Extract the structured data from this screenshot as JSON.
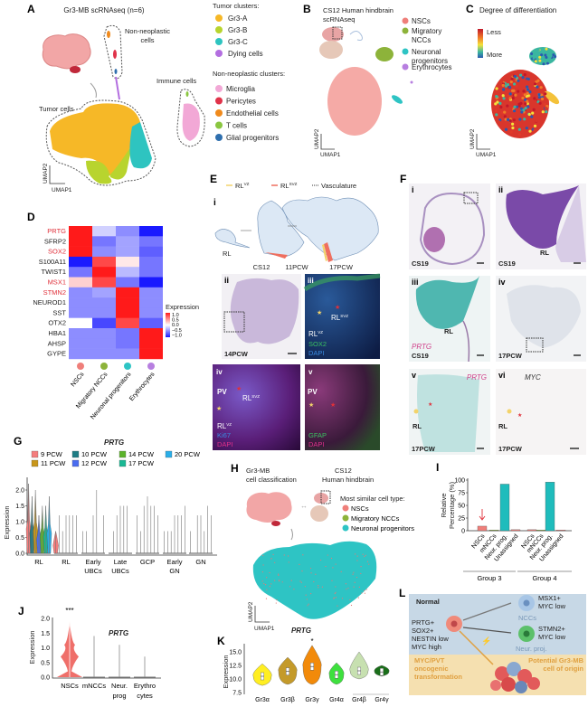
{
  "panel_labels": {
    "A": "A",
    "B": "B",
    "C": "C",
    "D": "D",
    "E": "E",
    "F": "F",
    "G": "G",
    "H": "H",
    "I": "I",
    "J": "J",
    "K": "K",
    "L": "L"
  },
  "A": {
    "title": "Gr3-MB scRNAseq (n=6)",
    "non_neoplastic_line1": "Non-neoplastic",
    "non_neoplastic_line2": "cells",
    "immune_label": "Immune cells",
    "tumor_label": "Tumor cells",
    "umap1": "UMAP1",
    "umap2": "UMAP2",
    "tumor_header": "Tumor clusters:",
    "tumor_clusters": [
      {
        "label": "Gr3-A",
        "color": "#f6b827"
      },
      {
        "label": "Gr3-B",
        "color": "#b8d42e"
      },
      {
        "label": "Gr3-C",
        "color": "#2ec4c0"
      },
      {
        "label": "Dying cells",
        "color": "#b36ee0"
      }
    ],
    "nonneo_header": "Non-neoplastic clusters:",
    "nonneo_clusters": [
      {
        "label": "Microglia",
        "color": "#f2a8d6"
      },
      {
        "label": "Pericytes",
        "color": "#e0334a"
      },
      {
        "label": "Endothelial cells",
        "color": "#f08a1c"
      },
      {
        "label": "T cells",
        "color": "#8ac640"
      },
      {
        "label": "Glial progenitors",
        "color": "#2f6fae"
      }
    ]
  },
  "B": {
    "title_line1": "CS12 Human hindbrain",
    "title_line2": "scRNAseq",
    "legend": [
      {
        "label": "NSCs",
        "color": "#ef7f7a"
      },
      {
        "label": "Migratory",
        "color": "#8db33a"
      },
      {
        "label": "NCCs",
        "color": ""
      },
      {
        "label": "Neuronal",
        "color": "#2ec4c4"
      },
      {
        "label": "progenitors",
        "color": ""
      },
      {
        "label": "Erythrocytes",
        "color": "#b77fe0"
      }
    ],
    "umap1": "UMAP1",
    "umap2": "UMAP2"
  },
  "C": {
    "title": "Degree of differentiation",
    "less": "Less",
    "more": "More",
    "umap1": "UMAP1",
    "umap2": "UMAP2"
  },
  "E": {
    "legend": {
      "rlvz": "RL",
      "rlvz_sup": "VZ",
      "rlsvz": "RL",
      "rlsvz_sup": "SVZ",
      "vasculature": "Vasculature"
    },
    "i_label": "i",
    "rl": "RL",
    "stages": [
      "CS12",
      "11PCW",
      "17PCW"
    ],
    "ii": {
      "label": "ii",
      "stage": "14PCW"
    },
    "iii": {
      "label": "iii",
      "rlsvz": "RL",
      "rlsvz_sup": "SVZ",
      "rlvz": "RL",
      "rlvz_sup": "VZ",
      "stain1": "SOX2",
      "stain2": "DAPI"
    },
    "iv": {
      "label": "iv",
      "pv": "PV",
      "rlsvz": "RL",
      "rlsvz_sup": "SVZ",
      "rlvz": "RL",
      "rlvz_sup": "VZ",
      "stain1": "Ki67",
      "stain2": "DAPI"
    },
    "v": {
      "label": "v",
      "pv": "PV",
      "stain1": "GFAP",
      "stain2": "DAPI"
    }
  },
  "F": {
    "i": {
      "label": "i",
      "stage": "CS19"
    },
    "ii": {
      "label": "ii",
      "stage": "CS19",
      "rl": "RL"
    },
    "iii": {
      "label": "iii",
      "stage": "CS19",
      "rl": "RL",
      "gene": "PRTG"
    },
    "iv": {
      "label": "iv",
      "stage": "17PCW"
    },
    "v": {
      "label": "v",
      "stage": "17PCW",
      "rl": "RL",
      "gene": "PRTG"
    },
    "vi": {
      "label": "vi",
      "stage": "17PCW",
      "rl": "RL",
      "gene": "MYC"
    }
  },
  "H": {
    "left_line1": "Gr3-MB",
    "left_line2": "cell classification",
    "right_line1": "CS12",
    "right_line2": "Human hindbrain",
    "legend_header": "Most similar cell type:",
    "legend": [
      {
        "label": "NSCs",
        "color": "#ef7f7a"
      },
      {
        "label": "Migratory NCCs",
        "color": "#8db33a"
      },
      {
        "label": "Neuronal progenitors",
        "color": "#2ec4c4"
      }
    ],
    "umap1": "UMAP1",
    "umap2": "UMAP2"
  },
  "L": {
    "normal": "Normal",
    "markers": [
      "PRTG+",
      "SOX2+",
      "NESTIN low",
      "MYC high"
    ],
    "ncc_lines": [
      "MSX1+",
      "MYC low"
    ],
    "ncc_label": "NCCs",
    "np_lines": [
      "STMN2+",
      "MYC low"
    ],
    "np_label": "Neur. proj.",
    "onc_lines": [
      "MYC/PVT",
      "oncogenic",
      "transformation"
    ],
    "origin_lines": [
      "Potential Gr3-MB",
      "cell of origin"
    ]
  },
  "chart_data": [
    {
      "id": "D",
      "type": "heatmap",
      "rows": [
        "PRTG",
        "SFRP2",
        "SOX2",
        "S100A11",
        "TWIST1",
        "MSX1",
        "STMN2",
        "NEUROD1",
        "SST",
        "OTX2",
        "HBA1",
        "AHSP",
        "GYPE"
      ],
      "highlighted_rows": [
        "PRTG",
        "SOX2",
        "MSX1",
        "STMN2"
      ],
      "columns": [
        "NSCs",
        "Migratory NCCs",
        "Neuronal progenitors",
        "Erythrocytes"
      ],
      "column_colors": [
        "#ef7f7a",
        "#8db33a",
        "#2ec4c4",
        "#b77fe0"
      ],
      "values": [
        [
          1.0,
          -0.2,
          -0.5,
          -1.0
        ],
        [
          1.0,
          -0.6,
          -0.4,
          -0.6
        ],
        [
          1.0,
          -0.5,
          -0.4,
          -0.7
        ],
        [
          -1.0,
          0.8,
          0.1,
          -0.6
        ],
        [
          -0.6,
          1.0,
          -0.3,
          -0.6
        ],
        [
          0.2,
          0.8,
          -0.6,
          -1.0
        ],
        [
          -0.5,
          -0.4,
          1.0,
          -0.5
        ],
        [
          -0.5,
          -0.5,
          1.0,
          -0.5
        ],
        [
          -0.5,
          -0.5,
          1.0,
          -0.5
        ],
        [
          0.0,
          -0.8,
          0.8,
          -0.7
        ],
        [
          -0.5,
          -0.5,
          -0.6,
          1.0
        ],
        [
          -0.5,
          -0.5,
          -0.6,
          1.0
        ],
        [
          -0.5,
          -0.5,
          -0.5,
          1.0
        ]
      ],
      "legend_title": "Expression",
      "legend_ticks": [
        "1.0",
        "0.5",
        "0.0",
        "−0.5",
        "−1.0"
      ],
      "range": [
        -1,
        1
      ]
    },
    {
      "id": "G",
      "type": "violin",
      "title": "PRTG",
      "ylabel": "Expression",
      "ylim": [
        0,
        2.2
      ],
      "yticks": [
        "0.0",
        "0.5",
        "1.0",
        "1.5",
        "2.0"
      ],
      "categories": [
        [
          "RL",
          "VZ"
        ],
        [
          "RL",
          "SVZ"
        ],
        [
          "Early",
          "UBCs"
        ],
        [
          "Late",
          "UBCs"
        ],
        [
          "GCP",
          ""
        ],
        [
          "Early",
          "GN"
        ],
        [
          "GN",
          ""
        ]
      ],
      "series": [
        {
          "name": "9 PCW",
          "color": "#f47c7c"
        },
        {
          "name": "10 PCW",
          "color": "#1e7c84"
        },
        {
          "name": "11 PCW",
          "color": "#c8961a"
        },
        {
          "name": "12 PCW",
          "color": "#4a6cf0"
        },
        {
          "name": "14 PCW",
          "color": "#5bb32a"
        },
        {
          "name": "17 PCW",
          "color": "#1ab894"
        },
        {
          "name": "20 PCW",
          "color": "#2aaee8"
        }
      ],
      "max_values": [
        [
          2.2,
          1.8,
          2.0,
          1.2,
          1.5,
          1.5,
          1.8
        ],
        [
          0.7,
          1.2,
          0.7,
          1.2,
          1.2,
          1.2,
          1.2
        ],
        [
          0.7,
          0.7,
          0,
          1.2,
          2.0,
          0,
          1.2
        ],
        [
          0,
          0.7,
          1.2,
          1.5,
          1.5,
          1.5,
          0
        ],
        [
          1.2,
          0.7,
          1.5,
          1.8,
          1.5,
          1.5,
          1.2
        ],
        [
          0.7,
          0.7,
          0.7,
          1.2,
          1.2,
          1.2,
          1.5
        ],
        [
          0.7,
          0,
          1.2,
          1.2,
          0.7,
          1.5,
          1.2
        ]
      ]
    },
    {
      "id": "I",
      "type": "bar",
      "ylabel_line1": "Relative",
      "ylabel_line2": "Percentage (%)",
      "ylim": [
        0,
        100
      ],
      "yticks": [
        "0",
        "25",
        "50",
        "75",
        "100"
      ],
      "groups": [
        "Group 3",
        "Group 4"
      ],
      "categories": [
        "NSCs",
        "mNCCs",
        "Neur. prog.",
        "Unassigned"
      ],
      "colors": [
        "#ef7f7a",
        "#8db33a",
        "#1fbcbc",
        "#ef7f7a"
      ],
      "values": [
        [
          9,
          0.5,
          92,
          2
        ],
        [
          2,
          0.3,
          96,
          1
        ]
      ]
    },
    {
      "id": "J",
      "type": "violin",
      "title": "PRTG",
      "ylabel": "Expression",
      "ylim": [
        0,
        2.0
      ],
      "yticks": [
        "0.0",
        "0.5",
        "1.0",
        "1.5",
        "2.0"
      ],
      "categories": [
        [
          "NSCs",
          ""
        ],
        [
          "mNCCs",
          ""
        ],
        [
          "Neur.",
          "prog"
        ],
        [
          "Erythro",
          "cytes"
        ]
      ],
      "max_values": [
        1.9,
        1.4,
        1.1,
        0.7
      ],
      "significance": "***"
    },
    {
      "id": "K",
      "type": "violin",
      "title": "PRTG",
      "ylabel": "Expression",
      "ylim": [
        7.5,
        16.5
      ],
      "yticks": [
        "7.5",
        "10.0",
        "12.5",
        "15.0"
      ],
      "categories": [
        "Gr3α",
        "Gr3β",
        "Gr3γ",
        "Gr4α",
        "Gr4β",
        "Gr4γ"
      ],
      "colors": [
        "#ffee22",
        "#c49a2a",
        "#f28a0a",
        "#3ee03e",
        "#c7e0b0",
        "#1a6e1a"
      ],
      "median": [
        10.5,
        11.4,
        12.3,
        10.8,
        11.5,
        11.3
      ],
      "min": [
        8.8,
        9.0,
        9.0,
        9.0,
        10.0,
        10.5
      ],
      "max": [
        12.8,
        14.0,
        16.2,
        13.0,
        15.0,
        12.5
      ],
      "significance": "*"
    }
  ]
}
